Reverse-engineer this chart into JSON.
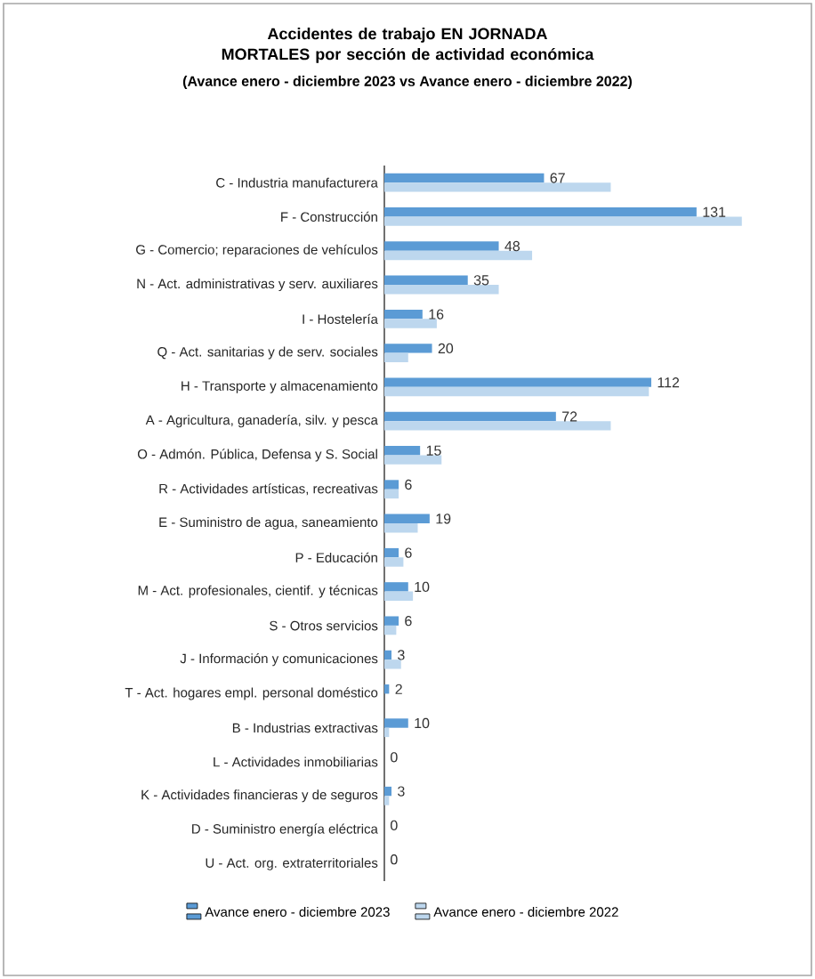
{
  "chart_data": {
    "type": "bar",
    "orientation": "horizontal",
    "title": "Accidentes de trabajo EN JORNADA MORTALES por sección de actividad económica",
    "subtitle": "(Avance enero - diciembre 2023 vs Avance enero - diciembre 2022)",
    "categories": [
      "C - Industria manufacturera",
      "F - Construcción",
      "G - Comercio; reparaciones de vehículos",
      "N - Act. administrativas y serv. auxiliares",
      "I - Hostelería",
      "Q - Act. sanitarias y de serv. sociales",
      "H - Transporte y almacenamiento",
      "A - Agricultura, ganadería, silv. y pesca",
      "O - Admón. Pública, Defensa y S. Social",
      "R - Actividades artísticas, recreativas",
      "E - Suministro de agua, saneamiento",
      "P - Educación",
      "M - Act. profesionales, cientif. y técnicas",
      "S - Otros servicios",
      "J - Información y comunicaciones",
      "T - Act. hogares empl. personal doméstico",
      "B - Industrias extractivas",
      "L - Actividades inmobiliarias",
      "K - Actividades financieras y de seguros",
      "D - Suministro energía eléctrica",
      "U - Act. org. extraterritoriales"
    ],
    "series": [
      {
        "name": "Avance enero - diciembre 2023",
        "color": "#5b9bd5",
        "values": [
          67,
          131,
          48,
          35,
          16,
          20,
          112,
          72,
          15,
          6,
          19,
          6,
          10,
          6,
          3,
          2,
          10,
          0,
          3,
          0,
          0
        ],
        "value_labels": [
          "67",
          "131",
          "48",
          "35",
          "16",
          "20",
          "112",
          "72",
          "15",
          "6",
          "19",
          "6",
          "10",
          "6",
          "3",
          "2",
          "10",
          "0",
          "3",
          "0",
          "0"
        ]
      },
      {
        "name": "Avance enero - diciembre 2022",
        "color": "#bdd7ee",
        "values": [
          95,
          150,
          62,
          48,
          22,
          10,
          111,
          95,
          24,
          6,
          14,
          8,
          12,
          5,
          7,
          null,
          2,
          0,
          2,
          0,
          0
        ]
      }
    ],
    "legend": "bottom"
  }
}
